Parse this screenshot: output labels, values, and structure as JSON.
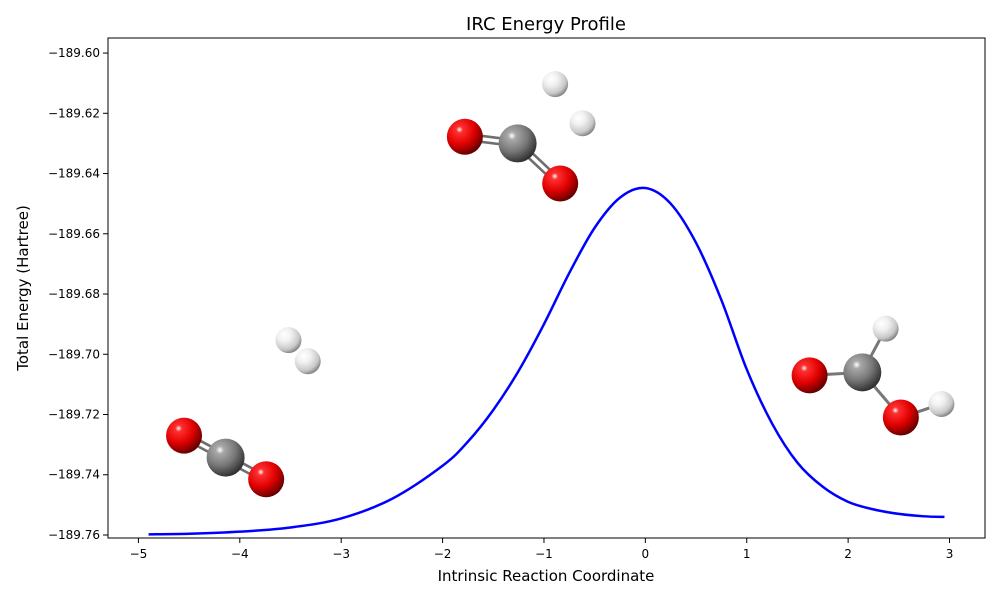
{
  "chart_data": {
    "type": "line",
    "title": "IRC Energy Profile",
    "xlabel": "Intrinsic Reaction Coordinate",
    "ylabel": "Total Energy (Hartree)",
    "xlim": [
      -5.3,
      3.35
    ],
    "ylim": [
      -189.761,
      -189.595
    ],
    "xticks": [
      -5,
      -4,
      -3,
      -2,
      -1,
      0,
      1,
      2,
      3
    ],
    "xtick_labels": [
      "−5",
      "−4",
      "−3",
      "−2",
      "−1",
      "0",
      "1",
      "2",
      "3"
    ],
    "yticks": [
      -189.76,
      -189.74,
      -189.72,
      -189.7,
      -189.68,
      -189.66,
      -189.64,
      -189.62,
      -189.6
    ],
    "ytick_labels": [
      "−189.76",
      "−189.74",
      "−189.72",
      "−189.70",
      "−189.68",
      "−189.66",
      "−189.64",
      "−189.62",
      "−189.60"
    ],
    "series": [
      {
        "name": "IRC path",
        "color": "#0000ff",
        "x": [
          -4.9,
          -4.5,
          -4.0,
          -3.5,
          -3.0,
          -2.5,
          -2.0,
          -1.75,
          -1.5,
          -1.25,
          -1.0,
          -0.75,
          -0.5,
          -0.25,
          0.0,
          0.25,
          0.5,
          0.75,
          1.0,
          1.25,
          1.5,
          1.75,
          2.0,
          2.25,
          2.5,
          2.75,
          2.95
        ],
        "y": [
          -189.7598,
          -189.7596,
          -189.7589,
          -189.7575,
          -189.7545,
          -189.748,
          -189.737,
          -189.729,
          -189.7185,
          -189.7055,
          -189.69,
          -189.673,
          -189.658,
          -189.648,
          -189.6448,
          -189.65,
          -189.663,
          -189.682,
          -189.705,
          -189.723,
          -189.736,
          -189.744,
          -189.749,
          -189.7515,
          -189.753,
          -189.7538,
          -189.754
        ]
      }
    ],
    "molecules": [
      {
        "name": "reactant-co2-h2",
        "atoms": [
          {
            "element": "H",
            "x": -3.52,
            "y": -189.6953
          },
          {
            "element": "H",
            "x": -3.33,
            "y": -189.7023
          },
          {
            "element": "O",
            "x": -4.55,
            "y": -189.727
          },
          {
            "element": "C",
            "x": -4.14,
            "y": -189.7343
          },
          {
            "element": "O",
            "x": -3.74,
            "y": -189.7415
          }
        ],
        "bonds": [
          [
            2,
            3
          ],
          [
            3,
            4
          ]
        ]
      },
      {
        "name": "transition-state",
        "atoms": [
          {
            "element": "H",
            "x": -0.89,
            "y": -189.6103
          },
          {
            "element": "H",
            "x": -0.62,
            "y": -189.6233
          },
          {
            "element": "O",
            "x": -1.78,
            "y": -189.6278
          },
          {
            "element": "C",
            "x": -1.26,
            "y": -189.63
          },
          {
            "element": "O",
            "x": -0.84,
            "y": -189.6433
          }
        ],
        "bonds": [
          [
            2,
            3
          ],
          [
            3,
            4
          ]
        ]
      },
      {
        "name": "product-formic-acid",
        "atoms": [
          {
            "element": "H",
            "x": 2.37,
            "y": -189.6915
          },
          {
            "element": "H",
            "x": 2.92,
            "y": -189.7165
          },
          {
            "element": "O",
            "x": 1.62,
            "y": -189.707
          },
          {
            "element": "C",
            "x": 2.14,
            "y": -189.706
          },
          {
            "element": "O",
            "x": 2.52,
            "y": -189.721
          }
        ],
        "bonds": [
          [
            2,
            3
          ],
          [
            3,
            0
          ],
          [
            3,
            4
          ],
          [
            4,
            1
          ]
        ]
      }
    ],
    "element_colors": {
      "O": "#ff0000",
      "C": "#808080",
      "H": "#ffffff"
    }
  }
}
